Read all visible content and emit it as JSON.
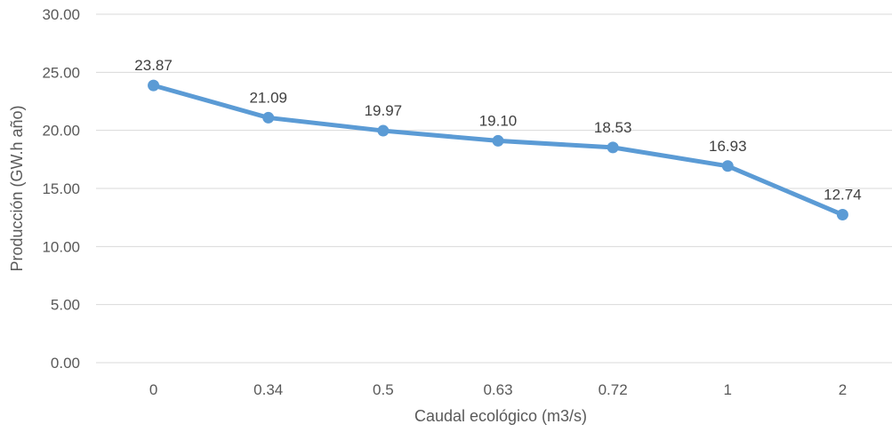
{
  "chart_data": {
    "type": "line",
    "categories": [
      "0",
      "0.34",
      "0.5",
      "0.63",
      "0.72",
      "1",
      "2"
    ],
    "series": [
      {
        "values": [
          23.87,
          21.09,
          19.97,
          19.1,
          18.53,
          16.93,
          12.74
        ],
        "labels": [
          "23.87",
          "21.09",
          "19.97",
          "19.10",
          "18.53",
          "16.93",
          "12.74"
        ],
        "color": "#5b9bd5"
      }
    ],
    "xlabel": "Caudal ecológico (m3/s)",
    "ylabel": "Producción (GW.h año)",
    "ylim": [
      0,
      30
    ],
    "yticks": [
      "0.00",
      "5.00",
      "10.00",
      "15.00",
      "20.00",
      "25.00",
      "30.00"
    ],
    "grid": true,
    "legend": "none"
  }
}
